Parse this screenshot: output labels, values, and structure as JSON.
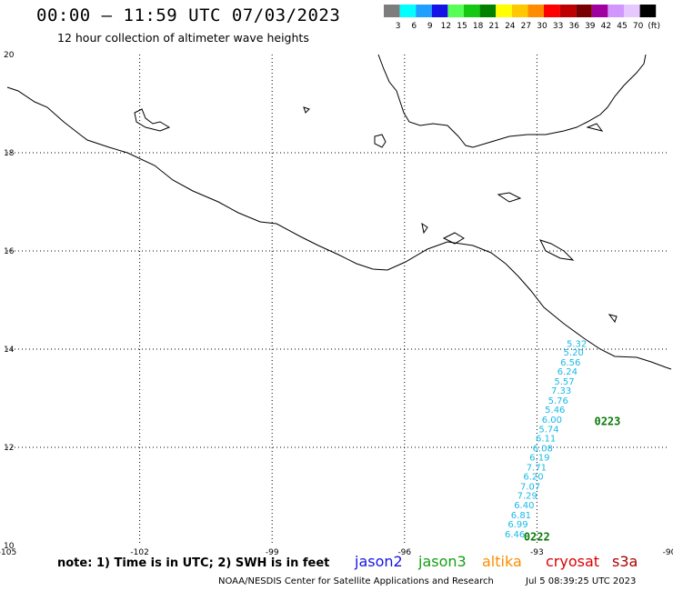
{
  "header": {
    "title": "00:00 – 11:59 UTC 07/03/2023",
    "subtitle": "12 hour collection of altimeter wave heights"
  },
  "color_scale": {
    "labels": [
      "3",
      "6",
      "9",
      "12",
      "15",
      "18",
      "21",
      "24",
      "27",
      "30",
      "33",
      "36",
      "39",
      "42",
      "45",
      "70"
    ],
    "unit": "(ft)",
    "colors": [
      "#7d7d7d",
      "#00ffff",
      "#1ea0ff",
      "#1414e6",
      "#55ff55",
      "#14c814",
      "#008200",
      "#ffff00",
      "#ffc800",
      "#ff8c00",
      "#ff0000",
      "#be0000",
      "#780000",
      "#a000a0",
      "#d296ff",
      "#e6c8ff",
      "#000000"
    ]
  },
  "axes": {
    "lon_labels": [
      "-105",
      "-102",
      "-99",
      "-96",
      "-93",
      "-90"
    ],
    "lon_values": [
      -105,
      -102,
      -99,
      -96,
      -93,
      -90
    ],
    "lat_labels": [
      "20",
      "18",
      "16",
      "14",
      "12",
      "10"
    ],
    "lat_values": [
      20,
      18,
      16,
      14,
      12,
      10
    ]
  },
  "track": {
    "color": "#19b9e6",
    "pass_color": "#0a7a0a",
    "passes": [
      {
        "label": "0223",
        "lon": -91.7,
        "lat": 12.45
      },
      {
        "label": "0222",
        "lon": -93.3,
        "lat": 10.1
      }
    ],
    "points": [
      {
        "lon": -92.1,
        "lat": 14.05,
        "swh": "5.32"
      },
      {
        "lon": -92.17,
        "lat": 13.87,
        "swh": "5.20"
      },
      {
        "lon": -92.24,
        "lat": 13.67,
        "swh": "6.56"
      },
      {
        "lon": -92.31,
        "lat": 13.48,
        "swh": "6.24"
      },
      {
        "lon": -92.38,
        "lat": 13.28,
        "swh": "5.57"
      },
      {
        "lon": -92.45,
        "lat": 13.09,
        "swh": "7.33"
      },
      {
        "lon": -92.52,
        "lat": 12.89,
        "swh": "5.76"
      },
      {
        "lon": -92.59,
        "lat": 12.7,
        "swh": "5.46"
      },
      {
        "lon": -92.66,
        "lat": 12.5,
        "swh": "6.00"
      },
      {
        "lon": -92.73,
        "lat": 12.31,
        "swh": "5.74"
      },
      {
        "lon": -92.8,
        "lat": 12.12,
        "swh": "6.11"
      },
      {
        "lon": -92.87,
        "lat": 11.92,
        "swh": "6.08"
      },
      {
        "lon": -92.94,
        "lat": 11.73,
        "swh": "6.19"
      },
      {
        "lon": -93.01,
        "lat": 11.53,
        "swh": "7.71"
      },
      {
        "lon": -93.08,
        "lat": 11.34,
        "swh": "6.20"
      },
      {
        "lon": -93.15,
        "lat": 11.14,
        "swh": "7.07"
      },
      {
        "lon": -93.22,
        "lat": 10.95,
        "swh": "7.29"
      },
      {
        "lon": -93.29,
        "lat": 10.76,
        "swh": "6.40"
      },
      {
        "lon": -93.36,
        "lat": 10.56,
        "swh": "6.81"
      },
      {
        "lon": -93.43,
        "lat": 10.37,
        "swh": "6.99"
      },
      {
        "lon": -93.5,
        "lat": 10.17,
        "swh": "6.46"
      }
    ]
  },
  "footer": {
    "note": "note: 1) Time is in UTC; 2) SWH is in feet",
    "satellites": [
      {
        "name": "jason2",
        "color": "#1414e6"
      },
      {
        "name": "jason3",
        "color": "#14a014"
      },
      {
        "name": "altika",
        "color": "#ff8c00"
      },
      {
        "name": "cryosat",
        "color": "#dd0000"
      },
      {
        "name": "s3a",
        "color": "#aa0000"
      }
    ],
    "credit": "NOAA/NESDIS Center for Satellite Applications and Research",
    "timestamp": "Jul  5 08:39:25 UTC 2023"
  }
}
